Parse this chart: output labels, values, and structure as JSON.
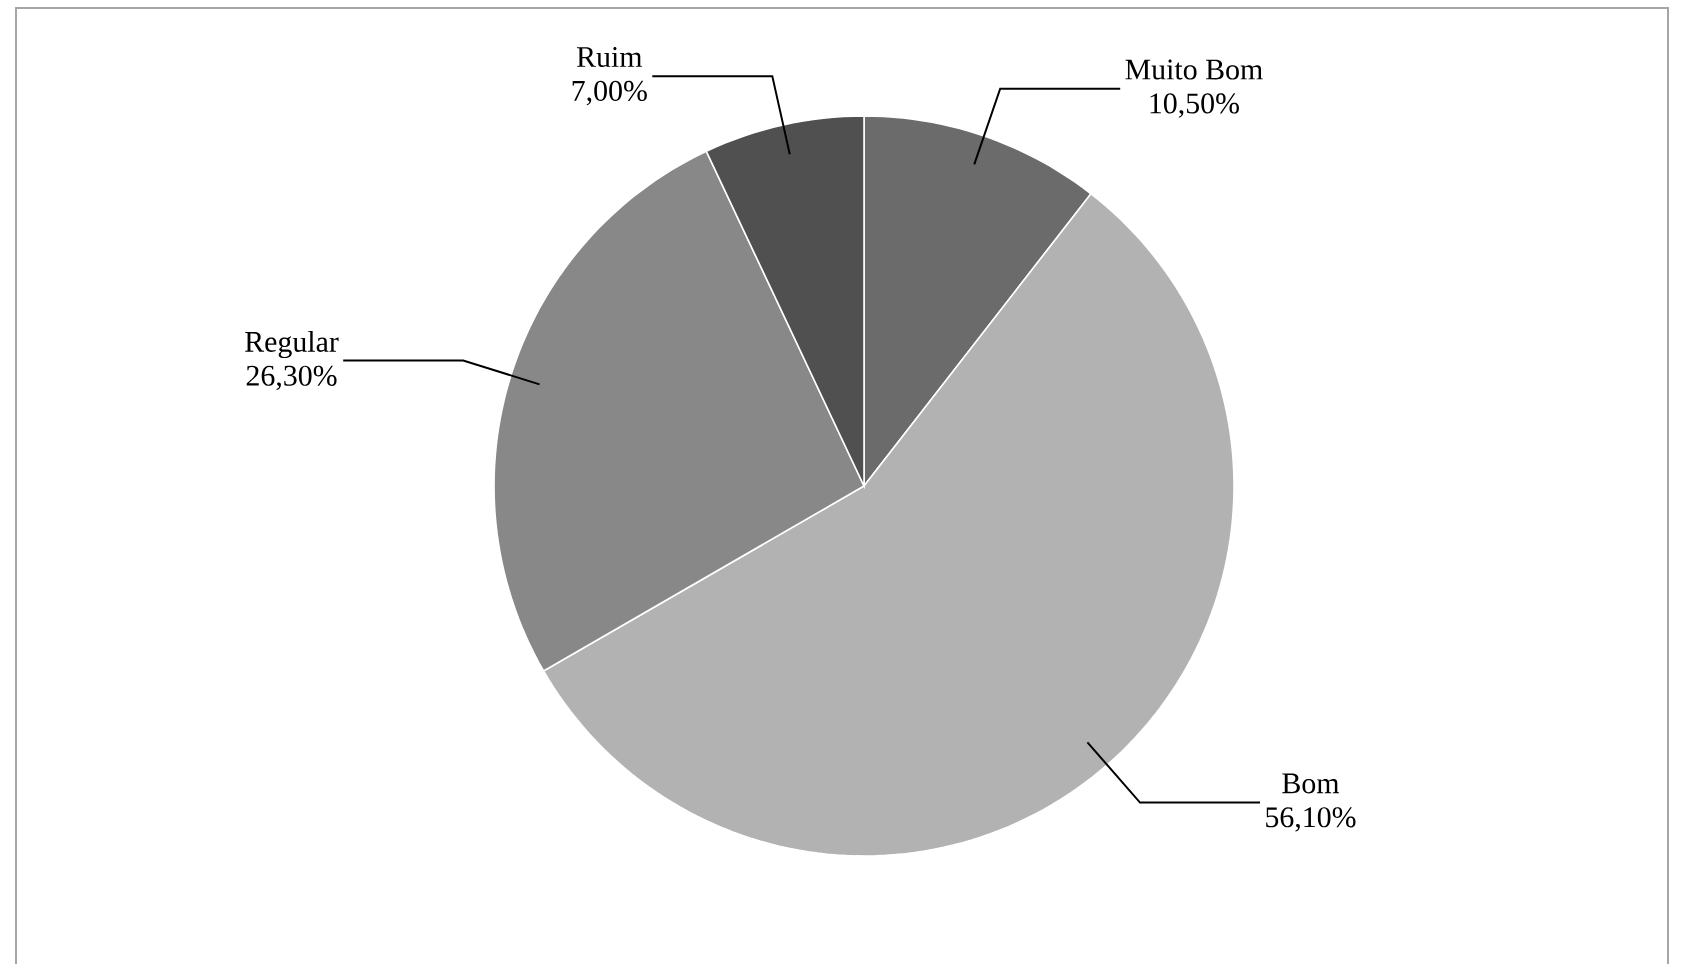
{
  "chart_data": {
    "type": "pie",
    "categories": [
      "Muito Bom",
      "Bom",
      "Regular",
      "Ruim"
    ],
    "values": [
      10.5,
      56.1,
      26.3,
      7.0
    ],
    "colors": [
      "#6b6b6b",
      "#b2b2b2",
      "#888888",
      "#505050"
    ],
    "value_labels": [
      "10,50%",
      "56,10%",
      "26,30%",
      "7,00%"
    ]
  }
}
